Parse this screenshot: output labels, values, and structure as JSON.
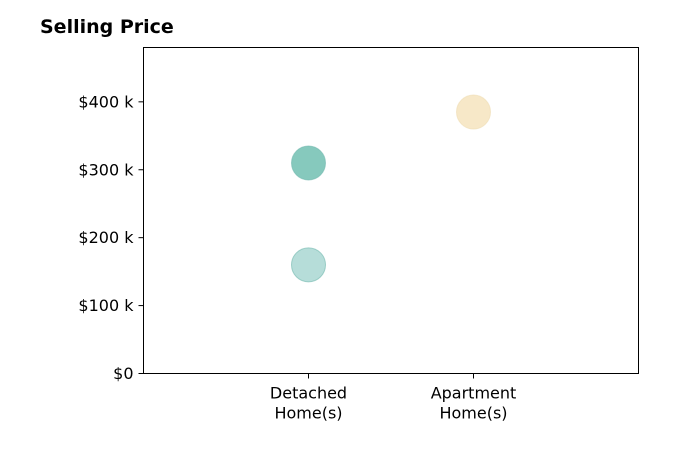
{
  "chart_data": {
    "type": "scatter",
    "title": "Selling Price",
    "xlabel": "",
    "ylabel": "",
    "categories": [
      "Detached Home(s)",
      "Apartment Home(s)"
    ],
    "x_tick_lines": [
      [
        "Detached",
        "Home(s)"
      ],
      [
        "Apartment",
        "Home(s)"
      ]
    ],
    "xlim": [
      -1,
      2
    ],
    "ylim": [
      0,
      480000
    ],
    "y_ticks": [
      0,
      100000,
      200000,
      300000,
      400000
    ],
    "y_tick_labels": [
      "$0",
      "$100 k",
      "$200 k",
      "$300 k",
      "$400 k"
    ],
    "grid": false,
    "legend": "none",
    "points": [
      {
        "category": "Detached Home(s)",
        "y": 160000,
        "color": "#b6ddd9"
      },
      {
        "category": "Detached Home(s)",
        "y": 310000,
        "color": "#86c9bd"
      },
      {
        "category": "Apartment Home(s)",
        "y": 385000,
        "color": "#f7e8c8"
      }
    ],
    "colors": {
      "teal_light": "#b6ddd9",
      "teal": "#86c9bd",
      "sand": "#f7e8c8",
      "teal_edge": "#6fb8ad",
      "sand_edge": "#efdcb3"
    }
  }
}
